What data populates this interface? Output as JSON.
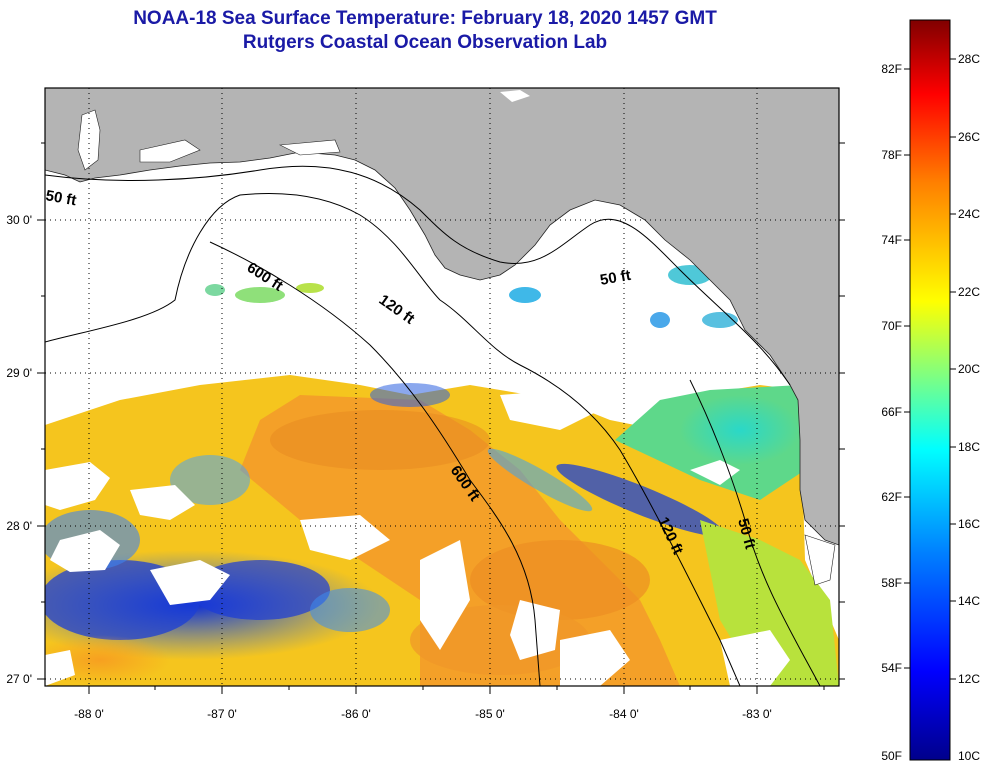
{
  "title": {
    "line1": "NOAA-18 Sea Surface Temperature:  February 18, 2020 1457 GMT",
    "line2": "Rutgers Coastal Ocean Observation Lab"
  },
  "map": {
    "lon_labels": [
      "-88 0'",
      "-87 0'",
      "-86 0'",
      "-85 0'",
      "-84 0'",
      "-83 0'"
    ],
    "lat_labels": [
      "30 0'",
      "29 0'",
      "28 0'",
      "27 0'"
    ],
    "contours": [
      {
        "label": "50 ft"
      },
      {
        "label": "600 ft"
      },
      {
        "label": "120 ft"
      },
      {
        "label": "50 ft"
      },
      {
        "label": "600 ft"
      },
      {
        "label": "120 ft"
      },
      {
        "label": "50 ft"
      }
    ],
    "colors": {
      "land": "#b4b4b4",
      "cloud": "#ffffff",
      "frame": "#000000"
    }
  },
  "colorbar": {
    "fahrenheit_labels": [
      "82F",
      "78F",
      "74F",
      "70F",
      "66F",
      "62F",
      "58F",
      "54F",
      "50F"
    ],
    "celsius_labels": [
      "28C",
      "26C",
      "24C",
      "22C",
      "20C",
      "18C",
      "16C",
      "14C",
      "12C",
      "10C"
    ],
    "scale_colors": [
      "#00008b",
      "#0000ff",
      "#0080ff",
      "#00ffff",
      "#80ff80",
      "#ffff00",
      "#ff8000",
      "#ff0000",
      "#800000"
    ]
  }
}
